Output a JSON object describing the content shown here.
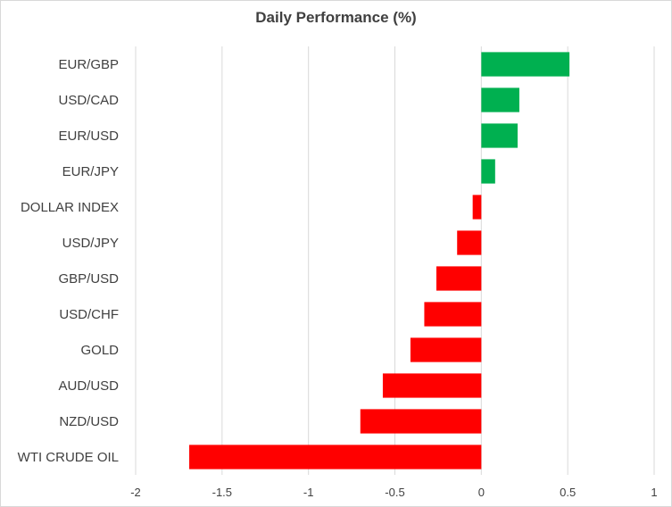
{
  "chart_data": {
    "type": "bar",
    "orientation": "horizontal",
    "title": "Daily Performance (%)",
    "xlabel": "",
    "ylabel": "",
    "xlim": [
      -2,
      1
    ],
    "x_ticks": [
      -2,
      -1.5,
      -1,
      -0.5,
      0,
      0.5,
      1
    ],
    "x_tick_labels": [
      "-2",
      "-1.5",
      "-1",
      "-0.5",
      "0",
      "0.5",
      "1"
    ],
    "grid": "vertical",
    "legend": "none",
    "categories": [
      "EUR/GBP",
      "USD/CAD",
      "EUR/USD",
      "EUR/JPY",
      "DOLLAR INDEX",
      "USD/JPY",
      "GBP/USD",
      "USD/CHF",
      "GOLD",
      "AUD/USD",
      "NZD/USD",
      "WTI CRUDE OIL"
    ],
    "values": [
      0.51,
      0.22,
      0.21,
      0.08,
      -0.05,
      -0.14,
      -0.26,
      -0.33,
      -0.41,
      -0.57,
      -0.7,
      -1.69
    ],
    "colors": {
      "positive": "#00b050",
      "negative": "#ff0000",
      "grid": "#d9d9d9",
      "text": "#404040"
    }
  }
}
